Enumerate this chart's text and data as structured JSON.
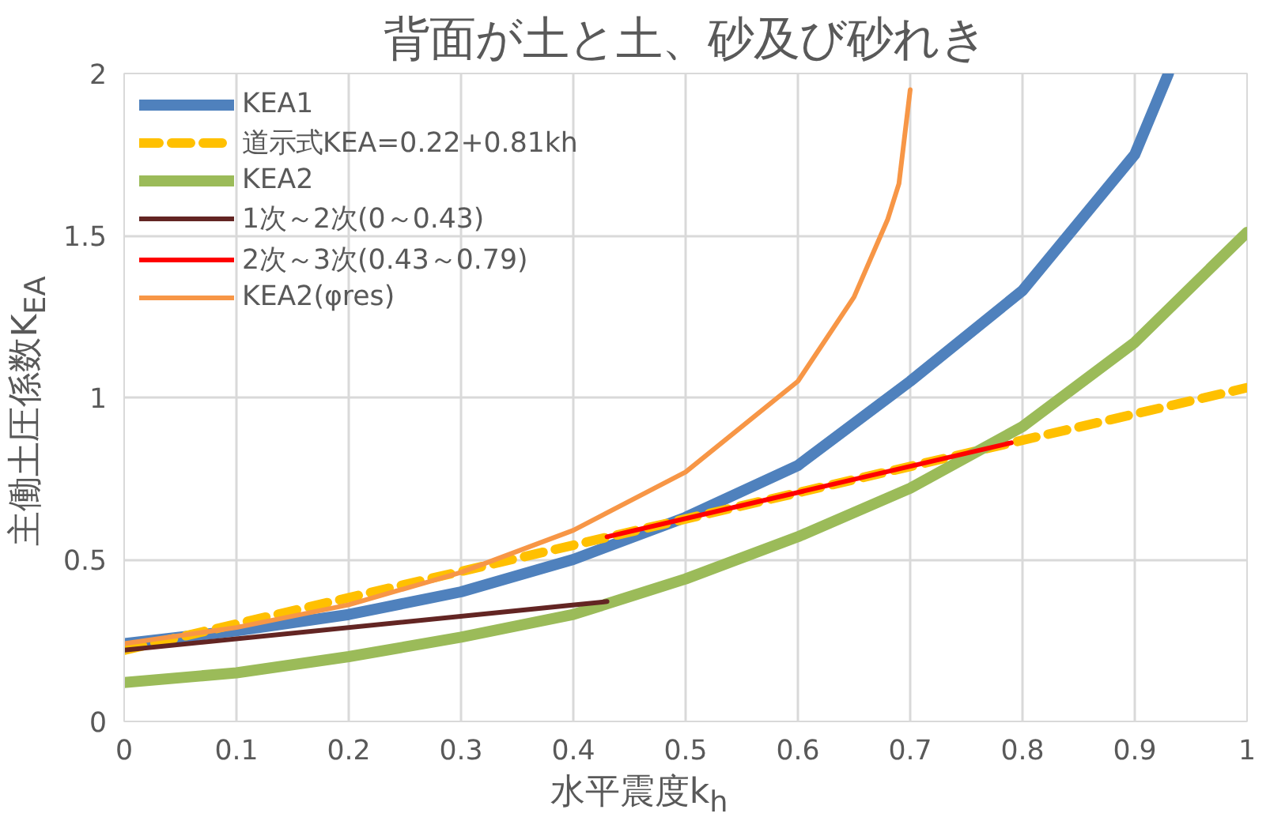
{
  "chart_data": {
    "type": "line",
    "title": "背面が土と土、砂及び砂れき",
    "xlabel": "水平震度k$_{h}$",
    "ylabel": "主働土圧係数K$_{EA}$",
    "xlim": [
      0,
      1
    ],
    "ylim": [
      0,
      2
    ],
    "xticks": [
      0,
      0.1,
      0.2,
      0.3,
      0.4,
      0.5,
      0.6,
      0.7,
      0.8,
      0.9,
      1
    ],
    "yticks": [
      0,
      0.5,
      1,
      1.5,
      2
    ],
    "grid": true,
    "legend": "top left",
    "marker": "none",
    "series": [
      {
        "name": "KEA1",
        "color": "#4f81bd",
        "x": [
          0,
          0.1,
          0.2,
          0.3,
          0.4,
          0.5,
          0.6,
          0.7,
          0.8,
          0.9,
          0.93
        ],
        "values": [
          0.24,
          0.28,
          0.33,
          0.4,
          0.5,
          0.63,
          0.79,
          1.05,
          1.33,
          1.75,
          2.0
        ]
      },
      {
        "name": "道示式KEA=0.22+0.81kh",
        "color": "#ffc000",
        "line_style": "dashed",
        "x": [
          0,
          1
        ],
        "values": [
          0.22,
          1.03
        ]
      },
      {
        "name": "KEA2",
        "color": "#9bbb59",
        "x": [
          0,
          0.1,
          0.2,
          0.3,
          0.4,
          0.5,
          0.6,
          0.7,
          0.8,
          0.9,
          1.0
        ],
        "values": [
          0.12,
          0.15,
          0.2,
          0.26,
          0.33,
          0.44,
          0.57,
          0.72,
          0.91,
          1.17,
          1.51
        ]
      },
      {
        "name": "1次～2次(0～0.43)",
        "color": "#632523",
        "x": [
          0,
          0.43
        ],
        "values": [
          0.22,
          0.37
        ]
      },
      {
        "name": "2次～3次(0.43～0.79)",
        "color": "#ff0000",
        "x": [
          0.43,
          0.79
        ],
        "values": [
          0.57,
          0.86
        ]
      },
      {
        "name": "KEA2(φres)",
        "color": "#f79646",
        "x": [
          0,
          0.1,
          0.2,
          0.3,
          0.4,
          0.5,
          0.6,
          0.65,
          0.68,
          0.69,
          0.7
        ],
        "values": [
          0.24,
          0.29,
          0.36,
          0.46,
          0.59,
          0.77,
          1.05,
          1.31,
          1.55,
          1.66,
          1.95
        ]
      }
    ]
  }
}
